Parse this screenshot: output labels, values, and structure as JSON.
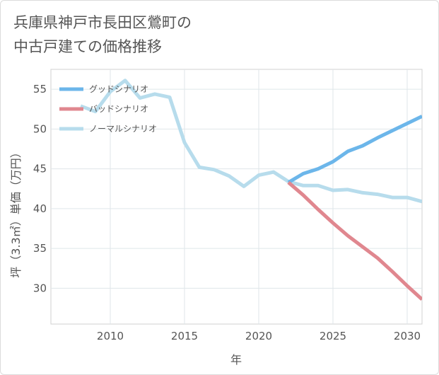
{
  "title": {
    "line1": "兵庫県神戸市長田区鶯町の",
    "line2": "中古戸建ての価格推移"
  },
  "chart_data": {
    "type": "line",
    "xlabel": "年",
    "ylabel": "坪（3.3㎡）単価（万円）",
    "xlim": [
      2006,
      2031
    ],
    "ylim": [
      25.5,
      57.5
    ],
    "xticks": [
      2010,
      2015,
      2020,
      2025,
      2030
    ],
    "yticks": [
      30,
      35,
      40,
      45,
      50,
      55
    ],
    "grid": true,
    "legend_position": "top-left",
    "series": [
      {
        "name": "グッドシナリオ",
        "color": "#6cb6ea",
        "x": [
          2022,
          2023,
          2024,
          2025,
          2026,
          2027,
          2028,
          2029,
          2030,
          2031
        ],
        "y": [
          43.3,
          44.4,
          45.0,
          45.9,
          47.2,
          47.9,
          48.9,
          49.8,
          50.7,
          51.6
        ]
      },
      {
        "name": "バッドシナリオ",
        "color": "#e0878f",
        "x": [
          2022,
          2023,
          2024,
          2025,
          2026,
          2027,
          2028,
          2029,
          2030,
          2031
        ],
        "y": [
          43.3,
          41.7,
          39.9,
          38.2,
          36.6,
          35.2,
          33.8,
          32.1,
          30.3,
          28.6
        ]
      },
      {
        "name": "ノーマルシナリオ",
        "color": "#b7dcec",
        "x": [
          2008,
          2009,
          2010,
          2011,
          2012,
          2013,
          2014,
          2015,
          2016,
          2017,
          2018,
          2019,
          2020,
          2021,
          2022,
          2023,
          2024,
          2025,
          2026,
          2027,
          2028,
          2029,
          2030,
          2031
        ],
        "y": [
          52.9,
          52.2,
          54.7,
          56.1,
          53.9,
          54.4,
          54.0,
          48.3,
          45.2,
          44.9,
          44.1,
          42.8,
          44.2,
          44.6,
          43.4,
          42.9,
          42.9,
          42.3,
          42.4,
          42.0,
          41.8,
          41.4,
          41.4,
          40.9
        ]
      }
    ]
  }
}
